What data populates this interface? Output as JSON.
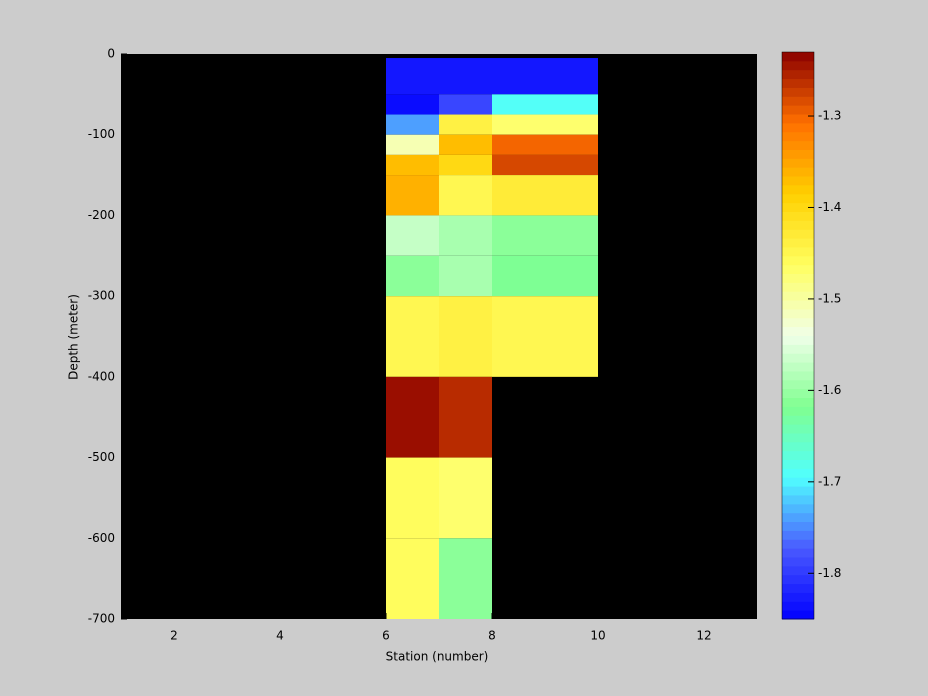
{
  "chart_data": {
    "type": "heatmap",
    "xlabel": "Station (number)",
    "ylabel": "Depth (meter)",
    "xlim": [
      1,
      13
    ],
    "ylim": [
      -700,
      0
    ],
    "xticks": [
      2,
      4,
      6,
      8,
      10,
      12
    ],
    "yticks": [
      0,
      -100,
      -200,
      -300,
      -400,
      -500,
      -600,
      -700
    ],
    "x_edges": [
      6,
      7,
      8,
      10
    ],
    "y_edges": [
      -5,
      -50,
      -75,
      -100,
      -125,
      -150,
      -200,
      -250,
      -300,
      -400,
      -500,
      -600,
      -700
    ],
    "values": [
      [
        -1.83,
        -1.83,
        -1.83
      ],
      [
        -1.84,
        -1.79,
        -1.69
      ],
      [
        -1.74,
        -1.44,
        -1.47
      ],
      [
        -1.51,
        -1.37,
        -1.3
      ],
      [
        -1.37,
        -1.4,
        -1.28
      ],
      [
        -1.36,
        -1.45,
        -1.43
      ],
      [
        -1.57,
        -1.59,
        -1.61
      ],
      [
        -1.61,
        -1.59,
        -1.62
      ],
      [
        -1.45,
        -1.44,
        -1.45
      ],
      [
        -1.24,
        -1.26,
        null
      ],
      [
        -1.46,
        -1.47,
        null
      ],
      [
        -1.46,
        -1.61,
        null
      ]
    ],
    "background": "#000000",
    "colormap": [
      "#0000ff",
      "#4a5aff",
      "#50ffff",
      "#80ff90",
      "#f0ffe8",
      "#ffff60",
      "#ffd000",
      "#ff7000",
      "#8b0000"
    ],
    "clim": [
      -1.85,
      -1.23
    ],
    "cticks": [
      -1.3,
      -1.4,
      -1.5,
      -1.6,
      -1.7,
      -1.8
    ]
  }
}
